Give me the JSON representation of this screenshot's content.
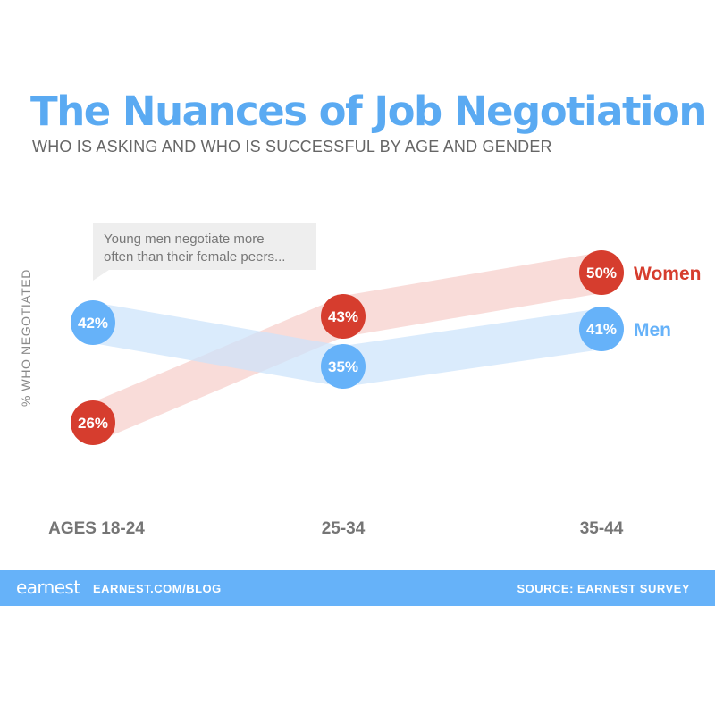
{
  "chart_data": {
    "type": "line",
    "title": "The Nuances of Job Negotiation",
    "subtitle": "WHO IS ASKING AND WHO IS SUCCESSFUL BY AGE AND GENDER",
    "ylabel": "% WHO NEGOTIATED",
    "categories": [
      "AGES 18-24",
      "25-34",
      "35-44"
    ],
    "ylim": [
      20,
      55
    ],
    "series": [
      {
        "name": "Women",
        "values": [
          26,
          43,
          50
        ],
        "labels": [
          "26%",
          "43%",
          "50%"
        ],
        "color": "#d63d2e",
        "band_color": "#f6cfcb"
      },
      {
        "name": "Men",
        "values": [
          42,
          35,
          41
        ],
        "labels": [
          "42%",
          "35%",
          "41%"
        ],
        "color": "#66b2f9",
        "band_color": "#cce3fb"
      }
    ],
    "annotation": {
      "lines": [
        "Young men negotiate more",
        "often than their female peers..."
      ]
    },
    "grid": false,
    "legend": "right"
  },
  "footer": {
    "brand": "earnest",
    "url": "EARNEST.COM/BLOG",
    "source": "SOURCE: EARNEST SURVEY"
  }
}
